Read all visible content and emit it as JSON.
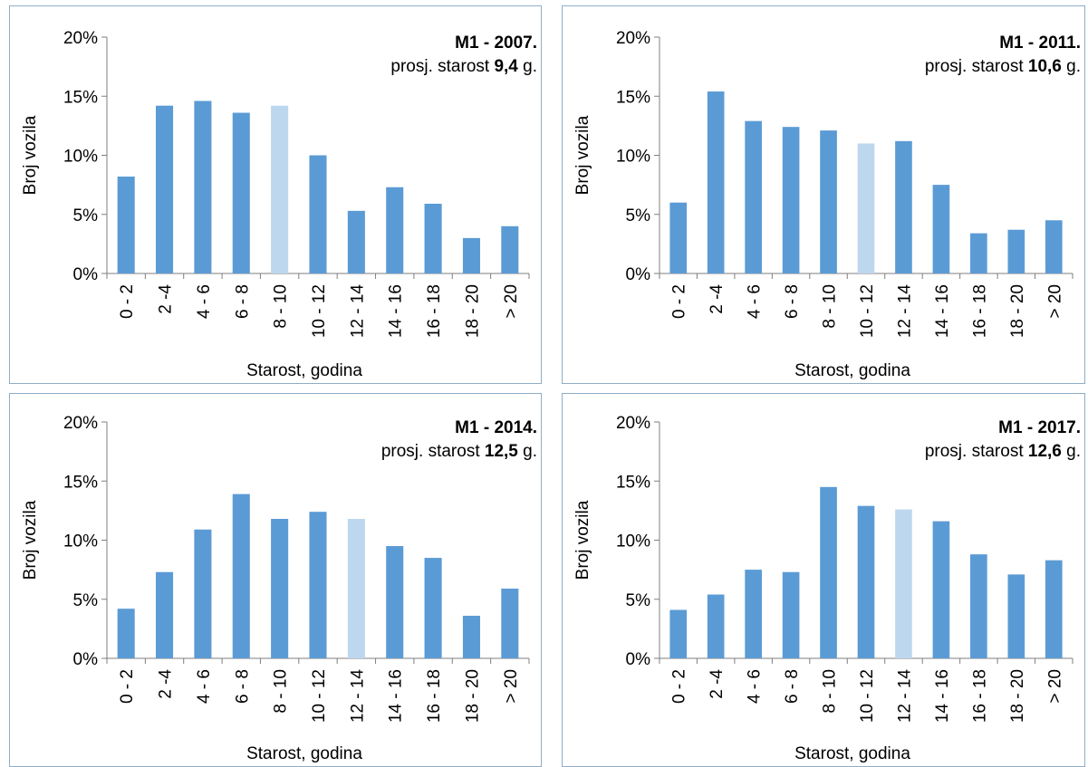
{
  "chart_data": [
    {
      "type": "bar",
      "title": "M1 - 2007.",
      "subtitle": {
        "prefix": "prosj. starost ",
        "value": "9,4",
        "suffix": " g."
      },
      "xlabel": "Starost, godina",
      "ylabel": "Broj vozila",
      "ylim": [
        0,
        20
      ],
      "yticks": [
        "0%",
        "5%",
        "10%",
        "15%",
        "20%"
      ],
      "categories": [
        "0 - 2",
        "2 -4",
        "4 - 6",
        "6 - 8",
        "8 - 10",
        "10 - 12",
        "12 - 14",
        "14 - 16",
        "16 - 18",
        "18 - 20",
        "> 20"
      ],
      "values": [
        8.2,
        14.2,
        14.6,
        13.6,
        14.2,
        10.0,
        5.3,
        7.3,
        5.9,
        3.0,
        4.0
      ],
      "highlight_index": 4
    },
    {
      "type": "bar",
      "title": "M1 - 2011.",
      "subtitle": {
        "prefix": "prosj. starost ",
        "value": "10,6",
        "suffix": " g."
      },
      "xlabel": "Starost, godina",
      "ylabel": "Broj vozila",
      "ylim": [
        0,
        20
      ],
      "yticks": [
        "0%",
        "5%",
        "10%",
        "15%",
        "20%"
      ],
      "categories": [
        "0 - 2",
        "2 -4",
        "4 - 6",
        "6 - 8",
        "8 - 10",
        "10 - 12",
        "12 - 14",
        "14 - 16",
        "16 - 18",
        "18 - 20",
        "> 20"
      ],
      "values": [
        6.0,
        15.4,
        12.9,
        12.4,
        12.1,
        11.0,
        11.2,
        7.5,
        3.4,
        3.7,
        4.5
      ],
      "highlight_index": 5
    },
    {
      "type": "bar",
      "title": "M1 - 2014.",
      "subtitle": {
        "prefix": "prosj. starost ",
        "value": "12,5",
        "suffix": " g."
      },
      "xlabel": "Starost, godina",
      "ylabel": "Broj vozila",
      "ylim": [
        0,
        20
      ],
      "yticks": [
        "0%",
        "5%",
        "10%",
        "15%",
        "20%"
      ],
      "categories": [
        "0 - 2",
        "2 -4",
        "4 - 6",
        "6 - 8",
        "8 - 10",
        "10 - 12",
        "12 - 14",
        "14 - 16",
        "16 - 18",
        "18 - 20",
        "> 20"
      ],
      "values": [
        4.2,
        7.3,
        10.9,
        13.9,
        11.8,
        12.4,
        11.8,
        9.5,
        8.5,
        3.6,
        5.9
      ],
      "highlight_index": 6
    },
    {
      "type": "bar",
      "title": "M1 - 2017.",
      "subtitle": {
        "prefix": "prosj. starost ",
        "value": "12,6",
        "suffix": " g."
      },
      "xlabel": "Starost, godina",
      "ylabel": "Broj vozila",
      "ylim": [
        0,
        20
      ],
      "yticks": [
        "0%",
        "5%",
        "10%",
        "15%",
        "20%"
      ],
      "categories": [
        "0 - 2",
        "2 -4",
        "4 - 6",
        "6 - 8",
        "8 - 10",
        "10 - 12",
        "12 - 14",
        "14 - 16",
        "16 - 18",
        "18 - 20",
        "> 20"
      ],
      "values": [
        4.1,
        5.4,
        7.5,
        7.3,
        14.5,
        12.9,
        12.6,
        11.6,
        8.8,
        7.1,
        8.3
      ],
      "highlight_index": 6
    }
  ],
  "colors": {
    "bar": "#5b9bd5",
    "bar_highlight": "#bdd7ee",
    "axis": "#7f7f7f",
    "panel_border": "#8eaec9"
  }
}
